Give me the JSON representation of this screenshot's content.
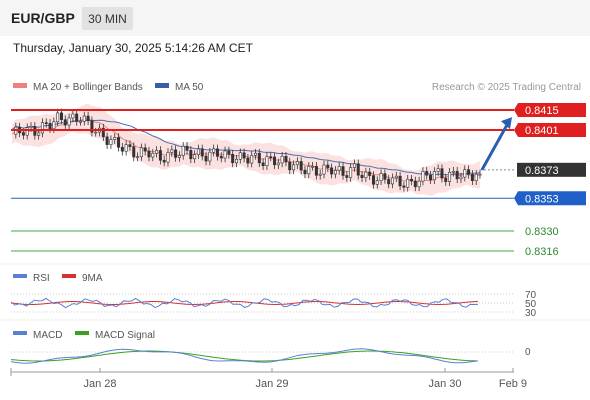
{
  "header": {
    "symbol": "EUR/GBP",
    "timeframe": "30 MIN"
  },
  "timestamp": "Thursday, January 30, 2025 5:14:26 AM CET",
  "legend": {
    "ma20": "MA 20 + Bollinger Bands",
    "ma50": "MA 50",
    "credit": "Research © 2025 Trading Central"
  },
  "colors": {
    "resistance": "#e02020",
    "support": "#2060c8",
    "target": "#44a844",
    "current": "#333333",
    "ma20": "#f08080",
    "ma50": "#4a6fb0",
    "rsi": "#5b7fd6",
    "rsi_ma": "#d93030",
    "macd": "#5b7fd6",
    "macd_signal": "#3aa020",
    "arrow": "#2a5db0"
  },
  "chart_data": [
    {
      "type": "candlestick",
      "x_axis_labels": [
        "Jan 28",
        "Jan 29",
        "Jan 30",
        "Feb 9"
      ],
      "levels": [
        {
          "value": 0.8415,
          "label": "0.8415",
          "kind": "resistance"
        },
        {
          "value": 0.8401,
          "label": "0.8401",
          "kind": "resistance"
        },
        {
          "value": 0.8373,
          "label": "0.8373",
          "kind": "current"
        },
        {
          "value": 0.8353,
          "label": "0.8353",
          "kind": "support"
        },
        {
          "value": 0.833,
          "label": "0.8330",
          "kind": "target"
        },
        {
          "value": 0.8316,
          "label": "0.8316",
          "kind": "target"
        }
      ],
      "close_series": [
        0.8398,
        0.8401,
        0.84,
        0.8404,
        0.8409,
        0.8408,
        0.841,
        0.8403,
        0.8396,
        0.8392,
        0.8388,
        0.8384,
        0.8386,
        0.8381,
        0.8384,
        0.8386,
        0.8384,
        0.8383,
        0.8385,
        0.8382,
        0.8381,
        0.8382,
        0.8379,
        0.838,
        0.8378,
        0.8375,
        0.8373,
        0.8372,
        0.8374,
        0.837,
        0.8374,
        0.8368,
        0.8366,
        0.8367,
        0.8364,
        0.8363,
        0.8368,
        0.8371,
        0.8368,
        0.837,
        0.8369,
        0.837
      ],
      "forecast_arrow": {
        "from": 0.8373,
        "to": 0.841
      }
    },
    {
      "type": "line",
      "name": "RSI",
      "legend": [
        "RSI",
        "9MA"
      ],
      "y_ticks": [
        "70",
        "50",
        "30"
      ]
    },
    {
      "type": "line",
      "name": "MACD",
      "legend": [
        "MACD",
        "MACD Signal"
      ],
      "y_ticks": [
        "0"
      ]
    }
  ]
}
